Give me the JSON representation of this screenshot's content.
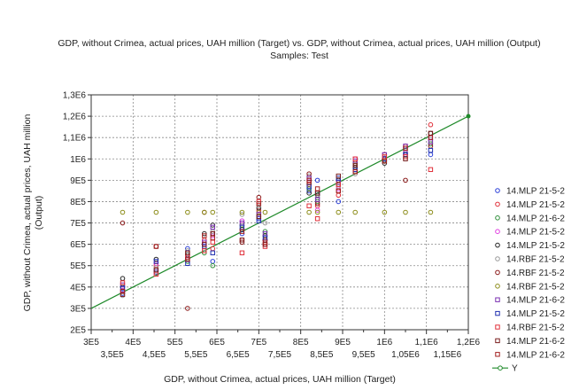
{
  "chart_data": {
    "type": "scatter",
    "title": "GDP, without Crimea, actual prices, UAH million (Target) vs. GDP, without Crimea, actual prices, UAH million  (Output)",
    "subtitle": "Samples: Test",
    "xlabel": "GDP, without Crimea, actual prices, UAH million  (Target)",
    "ylabel": "GDP, without Crimea, actual prices, UAH million (Output)",
    "xlim": [
      300000,
      1200000
    ],
    "ylim": [
      200000,
      1300000
    ],
    "x_ticks_major": [
      "3E5",
      "4E5",
      "5E5",
      "6E5",
      "7E5",
      "8E5",
      "9E5",
      "1E6",
      "1,1E6",
      "1,2E6"
    ],
    "x_ticks_minor": [
      "3,5E5",
      "4,5E5",
      "5,5E5",
      "6,5E5",
      "7,5E5",
      "8,5E5",
      "9,5E5",
      "1,05E6",
      "1,15E6"
    ],
    "y_ticks": [
      "2E5",
      "3E5",
      "4E5",
      "5E5",
      "6E5",
      "7E5",
      "8E5",
      "9E5",
      "1E6",
      "1,1E6",
      "1,2E6",
      "1,3E6"
    ],
    "x_ticks_major_values": [
      300000,
      400000,
      500000,
      600000,
      700000,
      800000,
      900000,
      1000000,
      1100000,
      1200000
    ],
    "x_ticks_minor_values": [
      350000,
      450000,
      550000,
      650000,
      750000,
      850000,
      950000,
      1050000,
      1150000
    ],
    "y_ticks_values": [
      200000,
      300000,
      400000,
      500000,
      600000,
      700000,
      800000,
      900000,
      1000000,
      1100000,
      1200000,
      1300000
    ],
    "grid": true,
    "legend_position": "right",
    "targets": [
      375000,
      455000,
      530000,
      570000,
      590000,
      660000,
      700000,
      715000,
      820000,
      840000,
      890000,
      930000,
      1000000,
      1050000,
      1110000
    ],
    "series": [
      {
        "name": "14.MLP 21-5-2",
        "color": "#2b3fd8",
        "marker": "circle",
        "values": [
          370000,
          480000,
          580000,
          600000,
          520000,
          650000,
          720000,
          620000,
          850000,
          900000,
          800000,
          960000,
          990000,
          1030000,
          1020000
        ]
      },
      {
        "name": "14.MLP 21-5-2",
        "color": "#e0303a",
        "marker": "circle",
        "values": [
          380000,
          500000,
          560000,
          620000,
          580000,
          620000,
          760000,
          600000,
          880000,
          780000,
          830000,
          940000,
          1020000,
          1060000,
          1160000
        ]
      },
      {
        "name": "14.MLP 21-6-2",
        "color": "#2f8f3a",
        "marker": "circle",
        "values": [
          400000,
          470000,
          520000,
          560000,
          500000,
          690000,
          730000,
          660000,
          860000,
          800000,
          880000,
          970000,
          990000,
          1040000,
          1070000
        ]
      },
      {
        "name": "14.MLP 21-5-2",
        "color": "#e03ce0",
        "marker": "circle",
        "values": [
          385000,
          510000,
          540000,
          600000,
          640000,
          710000,
          750000,
          620000,
          900000,
          760000,
          860000,
          1000000,
          1000000,
          1030000,
          1100000
        ]
      },
      {
        "name": "14.MLP 21-5-2",
        "color": "#222222",
        "marker": "circle",
        "values": [
          440000,
          530000,
          550000,
          650000,
          690000,
          670000,
          770000,
          640000,
          840000,
          830000,
          900000,
          960000,
          980000,
          1020000,
          1120000
        ]
      },
      {
        "name": "14.RBF 21-5-2",
        "color": "#9a9a9a",
        "marker": "circle",
        "values": [
          360000,
          490000,
          570000,
          580000,
          660000,
          740000,
          780000,
          700000,
          920000,
          820000,
          870000,
          930000,
          1010000,
          1050000,
          1090000
        ]
      },
      {
        "name": "14.RBF 21-5-2",
        "color": "#8b1a1a",
        "marker": "circle",
        "values": [
          700000,
          590000,
          300000,
          750000,
          650000,
          610000,
          820000,
          620000,
          930000,
          790000,
          850000,
          980000,
          1000000,
          900000,
          1060000
        ]
      },
      {
        "name": "14.RBF 21-5-2",
        "color": "#8d8d1a",
        "marker": "circle",
        "values": [
          750000,
          750000,
          750000,
          750000,
          750000,
          750000,
          750000,
          750000,
          750000,
          750000,
          750000,
          750000,
          750000,
          750000,
          750000
        ]
      },
      {
        "name": "14.MLP 21-6-2",
        "color": "#7a2fb0",
        "marker": "square",
        "values": [
          410000,
          470000,
          530000,
          610000,
          680000,
          700000,
          740000,
          650000,
          910000,
          810000,
          890000,
          990000,
          1020000,
          1060000,
          1080000
        ]
      },
      {
        "name": "14.MLP 21-5-2",
        "color": "#1f2fb0",
        "marker": "square",
        "values": [
          395000,
          520000,
          510000,
          590000,
          560000,
          680000,
          710000,
          630000,
          870000,
          840000,
          910000,
          950000,
          1000000,
          1020000,
          1040000
        ]
      },
      {
        "name": "14.RBF 21-5-2",
        "color": "#e0303a",
        "marker": "square",
        "values": [
          420000,
          460000,
          540000,
          570000,
          610000,
          560000,
          800000,
          590000,
          780000,
          720000,
          880000,
          1000000,
          1010000,
          1010000,
          950000
        ]
      },
      {
        "name": "14.MLP 21-6-2",
        "color": "#7a1f1f",
        "marker": "square",
        "values": [
          365000,
          480000,
          560000,
          600000,
          650000,
          620000,
          730000,
          600000,
          890000,
          840000,
          920000,
          970000,
          990000,
          1000000,
          1120000
        ]
      },
      {
        "name": "14.MLP 21-6-2",
        "color": "#a31f1f",
        "marker": "square",
        "values": [
          380000,
          590000,
          530000,
          640000,
          630000,
          660000,
          790000,
          610000,
          900000,
          860000,
          850000,
          940000,
          990000,
          1050000,
          1100000
        ]
      },
      {
        "name": "Y",
        "color": "#1f8a2a",
        "marker": "line",
        "values": []
      }
    ]
  }
}
